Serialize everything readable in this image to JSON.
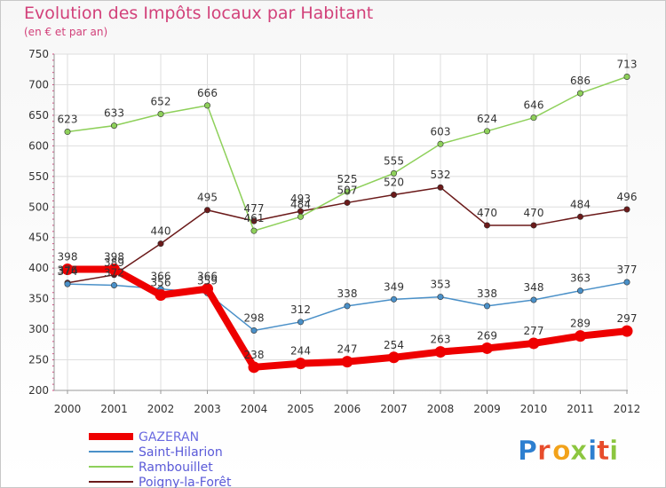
{
  "header": {
    "title": "Evolution des Impôts locaux par Habitant",
    "subtitle": "(en € et par an)"
  },
  "logo": {
    "text": "Proxiti",
    "colors": [
      "#2d7fd0",
      "#e74c2b",
      "#f2a21a",
      "#8cc63f",
      "#2d7fd0",
      "#e74c2b",
      "#8cc63f"
    ]
  },
  "chart_data": {
    "type": "line",
    "x": [
      "2000",
      "2001",
      "2002",
      "2003",
      "2004",
      "2005",
      "2006",
      "2007",
      "2008",
      "2009",
      "2010",
      "2011",
      "2012"
    ],
    "ylim": [
      200,
      750
    ],
    "yticks": [
      200,
      250,
      300,
      350,
      400,
      450,
      500,
      550,
      600,
      650,
      700,
      750
    ],
    "grid": true,
    "legend_position": "bottom-left",
    "series": [
      {
        "name": "Poigny-la-Forêt",
        "color": "#6b1a1a",
        "values": [
          376,
          389,
          440,
          495,
          477,
          493,
          507,
          520,
          532,
          470,
          470,
          484,
          496
        ]
      },
      {
        "name": "Rambouillet",
        "color": "#8ed05a",
        "values": [
          623,
          633,
          652,
          666,
          461,
          484,
          525,
          555,
          603,
          624,
          646,
          686,
          713
        ]
      },
      {
        "name": "Saint-Hilarion",
        "color": "#4a90c8",
        "values": [
          374,
          372,
          366,
          359,
          298,
          312,
          338,
          349,
          353,
          338,
          348,
          363,
          377
        ]
      },
      {
        "name": "GAZERAN",
        "color": "#ee0000",
        "values": [
          398,
          398,
          356,
          366,
          238,
          244,
          247,
          254,
          263,
          269,
          277,
          289,
          297
        ]
      }
    ],
    "legend": [
      "GAZERAN",
      "Saint-Hilarion",
      "Rambouillet",
      "Poigny-la-Forêt"
    ]
  }
}
